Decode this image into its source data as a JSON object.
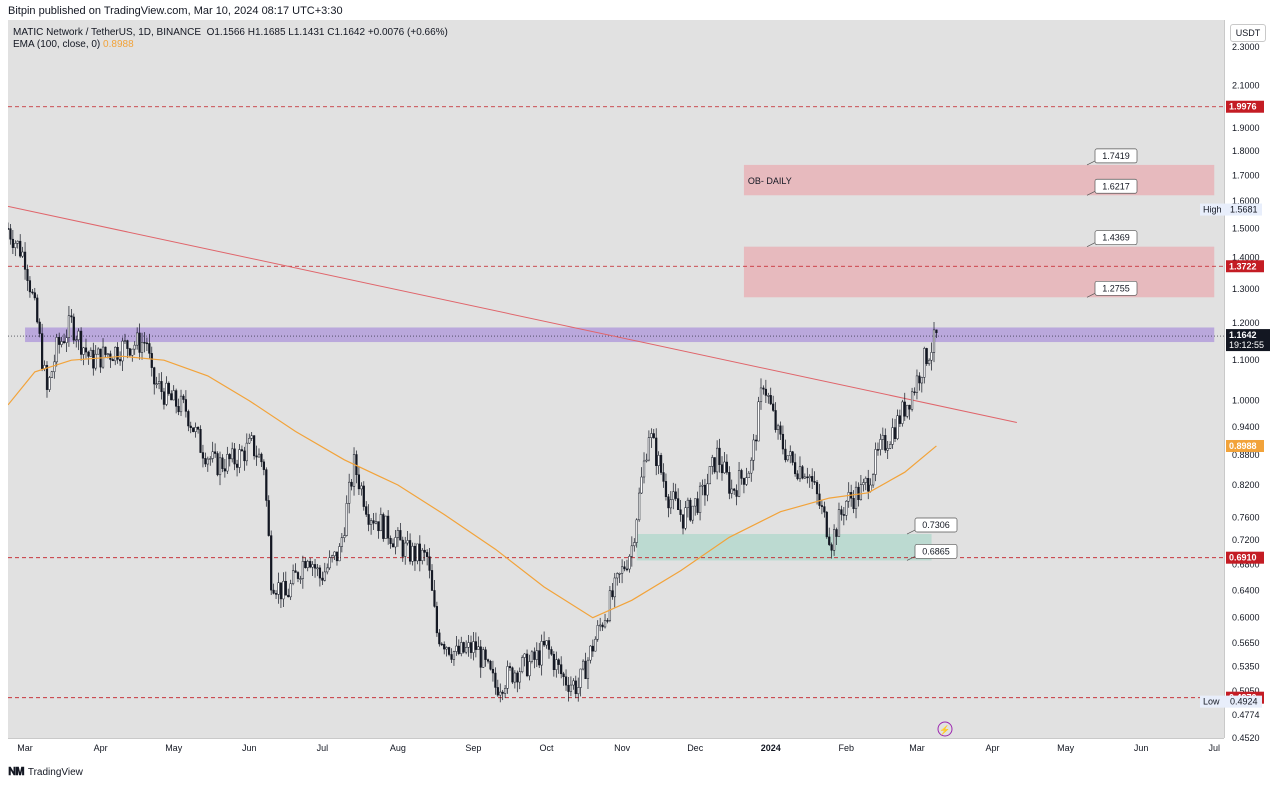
{
  "header": {
    "published": "Bitpin published on TradingView.com, Mar 10, 2024 08:17 UTC+3:30"
  },
  "legend": {
    "symbol": "MATIC Network / TetherUS, 1D, BINANCE",
    "ohlc": "O1.1566  H1.1685  L1.1431  C1.1642  +0.0076 (+0.66%)",
    "ema_label": "EMA (100, close, 0)",
    "ema_value": "0.8988"
  },
  "axis": {
    "currency": "USDT"
  },
  "footer": {
    "brand": "TradingView"
  },
  "colors": {
    "up": "#ffffff",
    "down": "#131722",
    "ema": "#f2a33a",
    "trendline": "#e0656b",
    "support": "#c41c24",
    "purple_zone": "#b39ddb",
    "ob_zone": "#ec9aa3",
    "green_zone": "#9fd6c4"
  },
  "chart_data": {
    "type": "candlestick",
    "y_scale": "log",
    "ylim": [
      0.452,
      2.45
    ],
    "x_tick_labels": [
      "Mar",
      "Apr",
      "May",
      "Jun",
      "Jul",
      "Aug",
      "Sep",
      "Oct",
      "Nov",
      "Dec",
      "2024",
      "Feb",
      "Mar",
      "Apr",
      "May",
      "Jun",
      "Jul"
    ],
    "x_tick_dates": [
      "2023-03-01",
      "2023-04-01",
      "2023-05-01",
      "2023-06-01",
      "2023-07-01",
      "2023-08-01",
      "2023-09-01",
      "2023-10-01",
      "2023-11-01",
      "2023-12-01",
      "2024-01-01",
      "2024-02-01",
      "2024-03-01",
      "2024-04-01",
      "2024-05-01",
      "2024-06-01",
      "2024-07-01"
    ],
    "y_ticks": [
      "2.3000",
      "2.1000",
      "1.9000",
      "1.8000",
      "1.7000",
      "1.6000",
      "1.5000",
      "1.4000",
      "1.3000",
      "1.2000",
      "1.1000",
      "1.0000",
      "0.9400",
      "0.8800",
      "0.8200",
      "0.7600",
      "0.7200",
      "0.6800",
      "0.6400",
      "0.6000",
      "0.5650",
      "0.5350",
      "0.5050",
      "0.4774",
      "0.4520"
    ],
    "price_badges": [
      {
        "label": "1.9976",
        "value": 1.9976,
        "kind": "level"
      },
      {
        "label": "1.3722",
        "value": 1.3722,
        "kind": "level"
      },
      {
        "label": "0.6910",
        "value": 0.691,
        "kind": "level"
      },
      {
        "label": "0.4970",
        "value": 0.497,
        "kind": "level"
      },
      {
        "label": "0.8988",
        "value": 0.8988,
        "kind": "ema"
      }
    ],
    "last_price": {
      "value": 1.1642,
      "label": "1.1642",
      "countdown": "19:12:55"
    },
    "high_marker": {
      "tag": "High",
      "label": "1.5681",
      "value": 1.5681
    },
    "low_marker": {
      "tag": "Low",
      "label": "0.4924",
      "value": 0.4924
    },
    "horizontal_lines": [
      1.9976,
      1.3722,
      0.691,
      0.497
    ],
    "zones": [
      {
        "name": "OB- DAILY",
        "from": 1.6217,
        "to": 1.7419,
        "start": "2023-12-21",
        "end": "2024-07-01",
        "color": "ob"
      },
      {
        "name": "",
        "from": 1.2755,
        "to": 1.4369,
        "start": "2023-12-21",
        "end": "2024-07-01",
        "color": "ob"
      },
      {
        "name": "",
        "from": 1.148,
        "to": 1.188,
        "start": "2023-03-01",
        "end": "2024-07-01",
        "color": "purple"
      },
      {
        "name": "",
        "from": 0.6865,
        "to": 0.7306,
        "start": "2023-11-07",
        "end": "2024-03-07",
        "color": "green"
      }
    ],
    "zone_labels": [
      {
        "label": "1.7419",
        "value": 1.7419
      },
      {
        "label": "1.6217",
        "value": 1.6217
      },
      {
        "label": "1.4369",
        "value": 1.4369
      },
      {
        "label": "1.2755",
        "value": 1.2755
      },
      {
        "label": "0.7306",
        "value": 0.7306
      },
      {
        "label": "0.6865",
        "value": 0.6865
      }
    ],
    "trendline": {
      "from": {
        "date": "2023-02-22",
        "price": 1.58
      },
      "to": {
        "date": "2024-04-11",
        "price": 0.95
      }
    },
    "ema_points": [
      [
        "2023-02-22",
        0.99
      ],
      [
        "2023-03-05",
        1.07
      ],
      [
        "2023-03-20",
        1.1
      ],
      [
        "2023-04-10",
        1.11
      ],
      [
        "2023-04-27",
        1.1
      ],
      [
        "2023-05-15",
        1.06
      ],
      [
        "2023-06-01",
        1.0
      ],
      [
        "2023-06-20",
        0.93
      ],
      [
        "2023-07-10",
        0.87
      ],
      [
        "2023-08-01",
        0.82
      ],
      [
        "2023-08-20",
        0.765
      ],
      [
        "2023-09-10",
        0.705
      ],
      [
        "2023-09-30",
        0.645
      ],
      [
        "2023-10-20",
        0.6
      ],
      [
        "2023-11-05",
        0.625
      ],
      [
        "2023-11-25",
        0.67
      ],
      [
        "2023-12-15",
        0.725
      ],
      [
        "2024-01-05",
        0.77
      ],
      [
        "2024-01-25",
        0.795
      ],
      [
        "2024-02-10",
        0.805
      ],
      [
        "2024-02-25",
        0.845
      ],
      [
        "2024-03-09",
        0.899
      ]
    ],
    "close_path": [
      [
        "2023-02-22",
        1.5
      ],
      [
        "2023-03-01",
        1.4
      ],
      [
        "2023-03-06",
        1.2
      ],
      [
        "2023-03-10",
        1.02
      ],
      [
        "2023-03-14",
        1.13
      ],
      [
        "2023-03-20",
        1.2
      ],
      [
        "2023-03-28",
        1.1
      ],
      [
        "2023-04-05",
        1.12
      ],
      [
        "2023-04-12",
        1.14
      ],
      [
        "2023-04-20",
        1.15
      ],
      [
        "2023-04-22",
        1.05
      ],
      [
        "2023-04-30",
        1.0
      ],
      [
        "2023-05-06",
        0.98
      ],
      [
        "2023-05-12",
        0.9
      ],
      [
        "2023-05-18",
        0.86
      ],
      [
        "2023-05-26",
        0.87
      ],
      [
        "2023-06-02",
        0.9
      ],
      [
        "2023-06-07",
        0.86
      ],
      [
        "2023-06-10",
        0.66
      ],
      [
        "2023-06-16",
        0.63
      ],
      [
        "2023-06-25",
        0.7
      ],
      [
        "2023-06-30",
        0.66
      ],
      [
        "2023-07-08",
        0.7
      ],
      [
        "2023-07-14",
        0.86
      ],
      [
        "2023-07-20",
        0.77
      ],
      [
        "2023-07-27",
        0.74
      ],
      [
        "2023-08-05",
        0.7
      ],
      [
        "2023-08-13",
        0.69
      ],
      [
        "2023-08-17",
        0.58
      ],
      [
        "2023-08-25",
        0.55
      ],
      [
        "2023-09-02",
        0.56
      ],
      [
        "2023-09-10",
        0.51
      ],
      [
        "2023-09-18",
        0.53
      ],
      [
        "2023-09-25",
        0.54
      ],
      [
        "2023-10-01",
        0.56
      ],
      [
        "2023-10-08",
        0.52
      ],
      [
        "2023-10-14",
        0.51
      ],
      [
        "2023-10-22",
        0.58
      ],
      [
        "2023-10-29",
        0.64
      ],
      [
        "2023-11-05",
        0.71
      ],
      [
        "2023-11-12",
        0.93
      ],
      [
        "2023-11-20",
        0.8
      ],
      [
        "2023-11-26",
        0.76
      ],
      [
        "2023-12-04",
        0.8
      ],
      [
        "2023-12-10",
        0.88
      ],
      [
        "2023-12-16",
        0.81
      ],
      [
        "2023-12-24",
        0.86
      ],
      [
        "2023-12-29",
        1.05
      ],
      [
        "2024-01-04",
        0.92
      ],
      [
        "2024-01-10",
        0.86
      ],
      [
        "2024-01-16",
        0.85
      ],
      [
        "2024-01-22",
        0.77
      ],
      [
        "2024-01-26",
        0.72
      ],
      [
        "2024-02-01",
        0.79
      ],
      [
        "2024-02-08",
        0.81
      ],
      [
        "2024-02-15",
        0.89
      ],
      [
        "2024-02-22",
        0.95
      ],
      [
        "2024-02-28",
        1.02
      ],
      [
        "2024-03-04",
        1.1
      ],
      [
        "2024-03-09",
        1.16
      ]
    ]
  }
}
